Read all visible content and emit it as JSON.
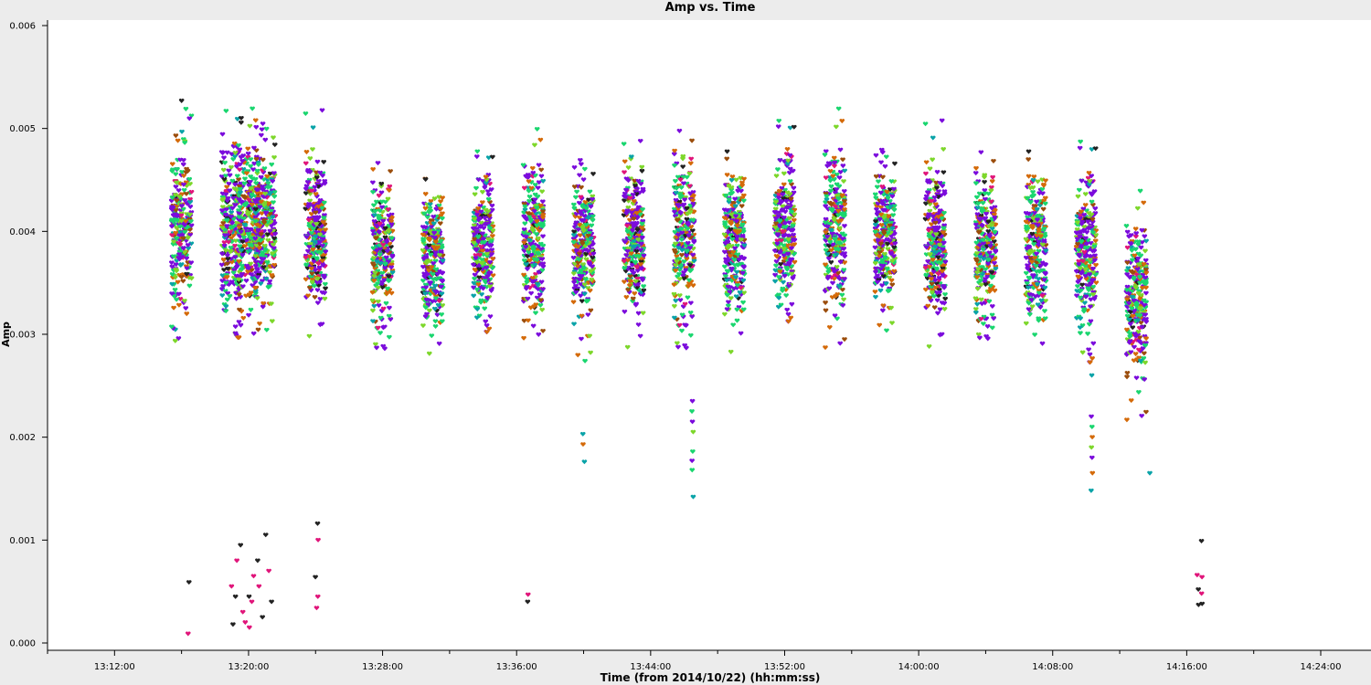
{
  "chart_data": {
    "type": "scatter",
    "title": "Amp vs. Time",
    "xlabel": "Time (from 2014/10/22) (hh:mm:ss)",
    "ylabel": "Amp",
    "x_unit": "time of day",
    "xlim": [
      "13:08:00",
      "14:27:00"
    ],
    "ylim": [
      0.0,
      0.006
    ],
    "x_ticks": [
      "13:12:00",
      "13:20:00",
      "13:28:00",
      "13:36:00",
      "13:44:00",
      "13:52:00",
      "14:00:00",
      "14:08:00",
      "14:16:00",
      "14:24:00"
    ],
    "y_ticks": [
      "0.000",
      "0.001",
      "0.002",
      "0.003",
      "0.004",
      "0.005",
      "0.006"
    ],
    "grid": false,
    "legend": "none",
    "marker": "heart",
    "palette": [
      "#7b0bdc",
      "#1ad66f",
      "#7dd72b",
      "#d46a09",
      "#222222",
      "#e0157a",
      "#0aa3a8",
      "#9b4d0c"
    ],
    "scans": [
      {
        "time": "13:16:00",
        "min": 0.0028,
        "max": 0.0053,
        "core_min": 0.0031,
        "core_max": 0.0049
      },
      {
        "time": "13:19:00",
        "min": 0.0029,
        "max": 0.0052,
        "core_min": 0.0031,
        "core_max": 0.005
      },
      {
        "time": "13:20:00",
        "min": 0.0029,
        "max": 0.0052,
        "core_min": 0.0031,
        "core_max": 0.005
      },
      {
        "time": "13:21:00",
        "min": 0.003,
        "max": 0.0052,
        "core_min": 0.0031,
        "core_max": 0.005
      },
      {
        "time": "13:24:00",
        "min": 0.0029,
        "max": 0.0052,
        "core_min": 0.0031,
        "core_max": 0.0049
      },
      {
        "time": "13:28:00",
        "min": 0.0028,
        "max": 0.0048,
        "core_min": 0.003,
        "core_max": 0.0046
      },
      {
        "time": "13:31:00",
        "min": 0.0027,
        "max": 0.0047,
        "core_min": 0.0029,
        "core_max": 0.0046
      },
      {
        "time": "13:34:00",
        "min": 0.003,
        "max": 0.0048,
        "core_min": 0.0031,
        "core_max": 0.0047
      },
      {
        "time": "13:37:00",
        "min": 0.0029,
        "max": 0.005,
        "core_min": 0.003,
        "core_max": 0.0048
      },
      {
        "time": "13:40:00",
        "min": 0.0027,
        "max": 0.0048,
        "core_min": 0.003,
        "core_max": 0.0047
      },
      {
        "time": "13:43:00",
        "min": 0.0028,
        "max": 0.0049,
        "core_min": 0.0031,
        "core_max": 0.0048
      },
      {
        "time": "13:46:00",
        "min": 0.0028,
        "max": 0.005,
        "core_min": 0.003,
        "core_max": 0.0049
      },
      {
        "time": "13:49:00",
        "min": 0.0027,
        "max": 0.005,
        "core_min": 0.003,
        "core_max": 0.0048
      },
      {
        "time": "13:52:00",
        "min": 0.0031,
        "max": 0.0051,
        "core_min": 0.0032,
        "core_max": 0.0049
      },
      {
        "time": "13:55:00",
        "min": 0.0028,
        "max": 0.0052,
        "core_min": 0.0031,
        "core_max": 0.0049
      },
      {
        "time": "13:58:00",
        "min": 0.003,
        "max": 0.0049,
        "core_min": 0.0031,
        "core_max": 0.0048
      },
      {
        "time": "14:01:00",
        "min": 0.0028,
        "max": 0.0051,
        "core_min": 0.003,
        "core_max": 0.0048
      },
      {
        "time": "14:04:00",
        "min": 0.0029,
        "max": 0.0048,
        "core_min": 0.003,
        "core_max": 0.0047
      },
      {
        "time": "14:07:00",
        "min": 0.0027,
        "max": 0.005,
        "core_min": 0.0029,
        "core_max": 0.0048
      },
      {
        "time": "14:10:00",
        "min": 0.0027,
        "max": 0.0049,
        "core_min": 0.003,
        "core_max": 0.0047
      },
      {
        "time": "14:13:00",
        "min": 0.0021,
        "max": 0.0044,
        "core_min": 0.0025,
        "core_max": 0.0042
      }
    ],
    "outliers": [
      {
        "time": "13:16:25",
        "y": 0.00059,
        "color": "#222222"
      },
      {
        "time": "13:16:25",
        "y": 9e-05,
        "color": "#e0157a"
      },
      {
        "time": "13:19:00",
        "y": 0.00055,
        "color": "#e0157a"
      },
      {
        "time": "13:19:10",
        "y": 0.00045,
        "color": "#222222"
      },
      {
        "time": "13:19:20",
        "y": 0.0008,
        "color": "#e0157a"
      },
      {
        "time": "13:19:30",
        "y": 0.00095,
        "color": "#222222"
      },
      {
        "time": "13:19:40",
        "y": 0.0003,
        "color": "#e0157a"
      },
      {
        "time": "13:19:50",
        "y": 0.0002,
        "color": "#e0157a"
      },
      {
        "time": "13:20:00",
        "y": 0.00045,
        "color": "#222222"
      },
      {
        "time": "13:20:10",
        "y": 0.0004,
        "color": "#e0157a"
      },
      {
        "time": "13:20:20",
        "y": 0.00065,
        "color": "#e0157a"
      },
      {
        "time": "13:20:30",
        "y": 0.0008,
        "color": "#222222"
      },
      {
        "time": "13:20:40",
        "y": 0.00055,
        "color": "#e0157a"
      },
      {
        "time": "13:20:50",
        "y": 0.00025,
        "color": "#222222"
      },
      {
        "time": "13:21:00",
        "y": 0.00105,
        "color": "#222222"
      },
      {
        "time": "13:21:10",
        "y": 0.0007,
        "color": "#e0157a"
      },
      {
        "time": "13:21:20",
        "y": 0.0004,
        "color": "#222222"
      },
      {
        "time": "13:19:05",
        "y": 0.00018,
        "color": "#222222"
      },
      {
        "time": "13:20:05",
        "y": 0.00015,
        "color": "#e0157a"
      },
      {
        "time": "13:24:10",
        "y": 0.00116,
        "color": "#222222"
      },
      {
        "time": "13:24:10",
        "y": 0.001,
        "color": "#e0157a"
      },
      {
        "time": "13:24:00",
        "y": 0.00064,
        "color": "#222222"
      },
      {
        "time": "13:24:05",
        "y": 0.00045,
        "color": "#e0157a"
      },
      {
        "time": "13:24:05",
        "y": 0.00034,
        "color": "#e0157a"
      },
      {
        "time": "13:36:40",
        "y": 0.00047,
        "color": "#e0157a"
      },
      {
        "time": "13:36:40",
        "y": 0.0004,
        "color": "#222222"
      },
      {
        "time": "13:40:00",
        "y": 0.00203,
        "color": "#0aa3a8"
      },
      {
        "time": "13:40:00",
        "y": 0.00193,
        "color": "#d46a09"
      },
      {
        "time": "13:40:05",
        "y": 0.00176,
        "color": "#0aa3a8"
      },
      {
        "time": "13:46:30",
        "y": 0.00235,
        "color": "#7b0bdc"
      },
      {
        "time": "13:46:30",
        "y": 0.00225,
        "color": "#1ad66f"
      },
      {
        "time": "13:46:30",
        "y": 0.00215,
        "color": "#7b0bdc"
      },
      {
        "time": "13:46:30",
        "y": 0.00205,
        "color": "#7dd72b"
      },
      {
        "time": "13:46:30",
        "y": 0.00186,
        "color": "#1ad66f"
      },
      {
        "time": "13:46:30",
        "y": 0.00177,
        "color": "#7b0bdc"
      },
      {
        "time": "13:46:30",
        "y": 0.00168,
        "color": "#1ad66f"
      },
      {
        "time": "13:46:30",
        "y": 0.00142,
        "color": "#0aa3a8"
      },
      {
        "time": "14:10:20",
        "y": 0.0026,
        "color": "#0aa3a8"
      },
      {
        "time": "14:10:20",
        "y": 0.0022,
        "color": "#7b0bdc"
      },
      {
        "time": "14:10:20",
        "y": 0.0021,
        "color": "#1ad66f"
      },
      {
        "time": "14:10:20",
        "y": 0.002,
        "color": "#d46a09"
      },
      {
        "time": "14:10:20",
        "y": 0.0019,
        "color": "#7dd72b"
      },
      {
        "time": "14:10:20",
        "y": 0.0018,
        "color": "#7b0bdc"
      },
      {
        "time": "14:10:20",
        "y": 0.00165,
        "color": "#d46a09"
      },
      {
        "time": "14:10:20",
        "y": 0.00148,
        "color": "#0aa3a8"
      },
      {
        "time": "14:13:45",
        "y": 0.00165,
        "color": "#0aa3a8"
      },
      {
        "time": "14:16:50",
        "y": 0.00099,
        "color": "#222222"
      },
      {
        "time": "14:16:40",
        "y": 0.00066,
        "color": "#e0157a"
      },
      {
        "time": "14:16:55",
        "y": 0.00064,
        "color": "#e0157a"
      },
      {
        "time": "14:16:40",
        "y": 0.00052,
        "color": "#222222"
      },
      {
        "time": "14:16:55",
        "y": 0.00048,
        "color": "#e0157a"
      },
      {
        "time": "14:16:40",
        "y": 0.00037,
        "color": "#222222"
      },
      {
        "time": "14:16:55",
        "y": 0.00038,
        "color": "#222222"
      }
    ]
  }
}
